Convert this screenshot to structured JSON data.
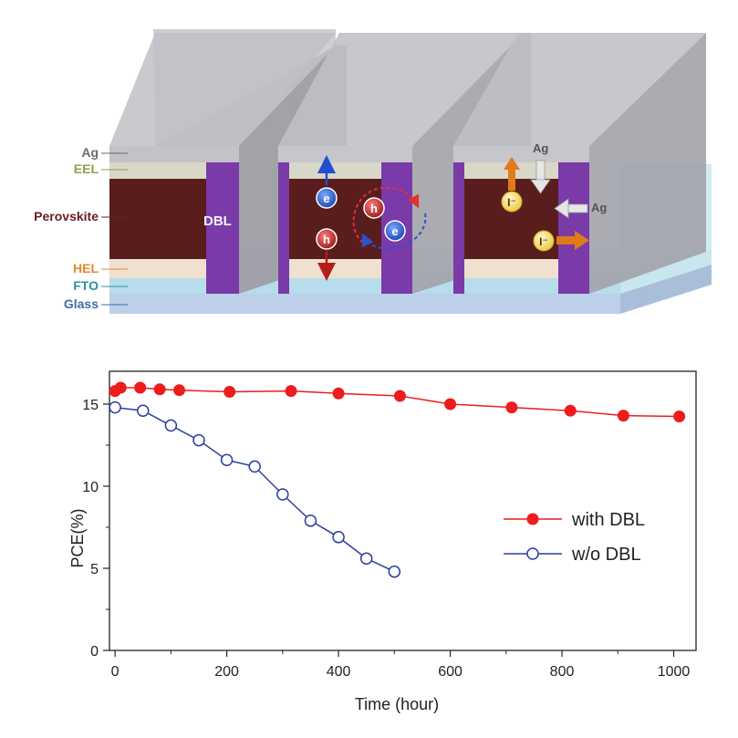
{
  "diagram": {
    "layer_labels": [
      "Ag",
      "EEL",
      "Perovskite",
      "HEL",
      "FTO",
      "Glass"
    ],
    "layer_colors": {
      "Ag": "#6b6b6b",
      "EEL": "#8ba24a",
      "Perovskite": "#6b1d1d",
      "HEL": "#e08a2e",
      "FTO": "#2e8fa8",
      "Glass": "#3a6ea5"
    },
    "dbl_label": "DBL",
    "carriers": {
      "electron": "e",
      "hole": "h",
      "iodide": "I⁻"
    },
    "ag_labels": [
      "Ag",
      "Ag"
    ],
    "colors": {
      "perovskite": "#5a1d1d",
      "dbl": "#7a3aa8",
      "cover": "#bdbdc4",
      "electron": "#2458c8",
      "hole": "#b22222",
      "iodide_fill": "#f3e28a",
      "iodide_arrow": "#e07a1a"
    }
  },
  "chart_data": {
    "type": "line",
    "title": "",
    "xlabel": "Time (hour)",
    "ylabel": "PCE(%)",
    "xlim": [
      -10,
      1040
    ],
    "ylim": [
      0,
      17
    ],
    "xticks": [
      0,
      200,
      400,
      600,
      800,
      1000
    ],
    "yticks": [
      0,
      5,
      10,
      15
    ],
    "series": [
      {
        "name": "with DBL",
        "color": "#ee1c1c",
        "marker": "filled",
        "x": [
          0,
          10,
          45,
          80,
          115,
          205,
          315,
          400,
          510,
          600,
          710,
          815,
          910,
          1010
        ],
        "y": [
          15.8,
          16.0,
          16.0,
          15.9,
          15.85,
          15.75,
          15.8,
          15.65,
          15.5,
          15.0,
          14.8,
          14.6,
          14.3,
          14.25
        ]
      },
      {
        "name": "w/o DBL",
        "color": "#2a3f9e",
        "marker": "open",
        "x": [
          0,
          50,
          100,
          150,
          200,
          250,
          300,
          350,
          400,
          450,
          500
        ],
        "y": [
          14.8,
          14.6,
          13.7,
          12.8,
          11.6,
          11.2,
          9.5,
          7.9,
          6.9,
          5.6,
          4.8
        ]
      }
    ],
    "legend_position": "center-right"
  }
}
